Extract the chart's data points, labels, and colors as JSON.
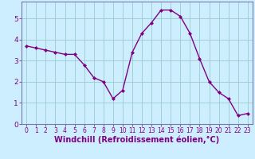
{
  "x": [
    0,
    1,
    2,
    3,
    4,
    5,
    6,
    7,
    8,
    9,
    10,
    11,
    12,
    13,
    14,
    15,
    16,
    17,
    18,
    19,
    20,
    21,
    22,
    23
  ],
  "y": [
    3.7,
    3.6,
    3.5,
    3.4,
    3.3,
    3.3,
    2.8,
    2.2,
    2.0,
    1.2,
    1.6,
    3.4,
    4.3,
    4.8,
    5.4,
    5.4,
    5.1,
    4.3,
    3.1,
    2.0,
    1.5,
    1.2,
    0.4,
    0.5
  ],
  "line_color": "#800080",
  "marker": "D",
  "marker_size": 2.0,
  "linewidth": 1.0,
  "bg_color": "#cceeff",
  "grid_color": "#99cccc",
  "xlabel": "Windchill (Refroidissement éolien,°C)",
  "ylim": [
    0,
    5.8
  ],
  "xlim": [
    -0.5,
    23.5
  ],
  "yticks": [
    0,
    1,
    2,
    3,
    4,
    5
  ],
  "xticks": [
    0,
    1,
    2,
    3,
    4,
    5,
    6,
    7,
    8,
    9,
    10,
    11,
    12,
    13,
    14,
    15,
    16,
    17,
    18,
    19,
    20,
    21,
    22,
    23
  ],
  "tick_color": "#800080",
  "tick_fontsize": 5.5,
  "xlabel_fontsize": 7.0,
  "spine_color": "#7777aa"
}
